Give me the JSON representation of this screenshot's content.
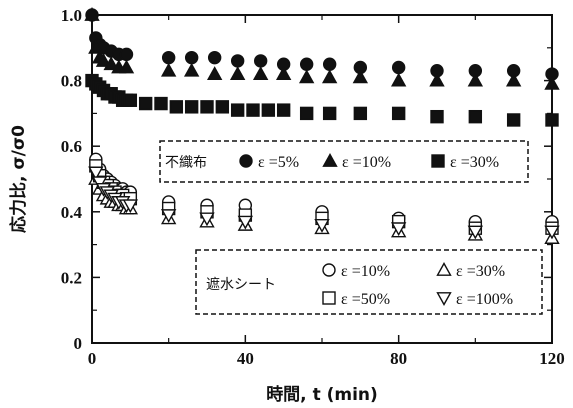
{
  "chart_data": {
    "type": "scatter",
    "title": "",
    "xlabel": "時間, t (min)",
    "ylabel": "応力比, σ/σ0",
    "xlim": [
      0,
      120
    ],
    "ylim": [
      0,
      1.0
    ],
    "x_ticks": [
      "0",
      "40",
      "80",
      "120"
    ],
    "y_ticks": [
      "0",
      "0.2",
      "0.4",
      "0.6",
      "0.8",
      "1.0"
    ],
    "grid": false,
    "legend_groups": [
      {
        "title": "不織布",
        "placement": "middle-right",
        "series_indices": [
          0,
          1,
          2
        ]
      },
      {
        "title": "遮水シート",
        "placement": "bottom-right",
        "series_indices": [
          3,
          4,
          5,
          6
        ]
      }
    ],
    "series": [
      {
        "name": "ε =5%",
        "marker": "filled-circle",
        "x": [
          0,
          1,
          2,
          3,
          5,
          7,
          9,
          20,
          26,
          32,
          38,
          44,
          50,
          56,
          62,
          70,
          80,
          90,
          100,
          110,
          120
        ],
        "y": [
          1.0,
          0.93,
          0.91,
          0.9,
          0.89,
          0.88,
          0.88,
          0.87,
          0.87,
          0.87,
          0.86,
          0.86,
          0.85,
          0.85,
          0.85,
          0.84,
          0.84,
          0.83,
          0.83,
          0.83,
          0.82
        ]
      },
      {
        "name": "ε =10%",
        "marker": "filled-triangle",
        "x": [
          0,
          1,
          2,
          3,
          5,
          7,
          9,
          20,
          26,
          32,
          38,
          44,
          50,
          56,
          62,
          70,
          80,
          90,
          100,
          110,
          120
        ],
        "y": [
          1.0,
          0.9,
          0.87,
          0.86,
          0.85,
          0.84,
          0.84,
          0.83,
          0.83,
          0.82,
          0.82,
          0.82,
          0.82,
          0.81,
          0.81,
          0.81,
          0.8,
          0.8,
          0.8,
          0.8,
          0.79
        ]
      },
      {
        "name": "ε =30%",
        "marker": "filled-square",
        "x": [
          0,
          1,
          2,
          3,
          4,
          5,
          6,
          7,
          8,
          9,
          10,
          14,
          18,
          22,
          26,
          30,
          34,
          38,
          42,
          46,
          50,
          56,
          62,
          70,
          80,
          90,
          100,
          110,
          120
        ],
        "y": [
          0.8,
          0.79,
          0.78,
          0.77,
          0.76,
          0.76,
          0.75,
          0.75,
          0.74,
          0.74,
          0.74,
          0.73,
          0.73,
          0.72,
          0.72,
          0.72,
          0.72,
          0.71,
          0.71,
          0.71,
          0.71,
          0.7,
          0.7,
          0.7,
          0.7,
          0.69,
          0.69,
          0.68,
          0.68
        ]
      },
      {
        "name": "ε =10%",
        "marker": "open-circle",
        "x": [
          1,
          2,
          3,
          4,
          5,
          6,
          7,
          8,
          9,
          10,
          20,
          30,
          40,
          60,
          80,
          100,
          120
        ],
        "y": [
          0.56,
          0.53,
          0.51,
          0.5,
          0.49,
          0.48,
          0.47,
          0.47,
          0.46,
          0.46,
          0.43,
          0.42,
          0.42,
          0.4,
          0.38,
          0.37,
          0.37
        ]
      },
      {
        "name": "ε =30%",
        "marker": "open-triangle",
        "x": [
          1,
          2,
          3,
          4,
          5,
          6,
          7,
          8,
          9,
          10,
          20,
          30,
          40,
          60,
          80,
          100,
          120
        ],
        "y": [
          0.5,
          0.47,
          0.45,
          0.44,
          0.43,
          0.43,
          0.42,
          0.42,
          0.41,
          0.41,
          0.38,
          0.37,
          0.36,
          0.35,
          0.34,
          0.33,
          0.32
        ]
      },
      {
        "name": "ε =50%",
        "marker": "open-square",
        "x": [
          1,
          2,
          3,
          4,
          5,
          6,
          7,
          8,
          9,
          10,
          20,
          30,
          40,
          60,
          80,
          100,
          120
        ],
        "y": [
          0.54,
          0.51,
          0.49,
          0.48,
          0.47,
          0.46,
          0.45,
          0.45,
          0.44,
          0.44,
          0.41,
          0.4,
          0.39,
          0.38,
          0.37,
          0.35,
          0.35
        ]
      },
      {
        "name": "ε =100%",
        "marker": "open-inverted-triangle",
        "x": [
          1,
          2,
          3,
          4,
          5,
          6,
          7,
          8,
          9,
          10,
          20,
          30,
          40,
          60,
          80,
          100,
          120
        ],
        "y": [
          0.52,
          0.49,
          0.47,
          0.46,
          0.45,
          0.44,
          0.43,
          0.43,
          0.42,
          0.42,
          0.39,
          0.38,
          0.37,
          0.36,
          0.35,
          0.34,
          0.34
        ]
      }
    ]
  }
}
